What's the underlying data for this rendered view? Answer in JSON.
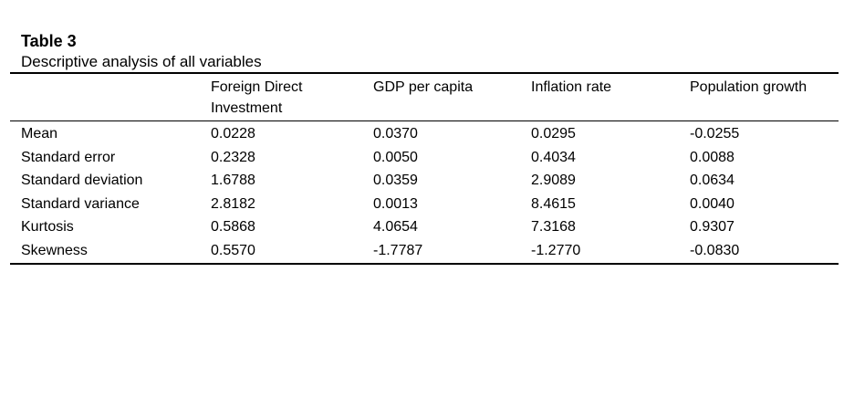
{
  "table": {
    "number": "Table 3",
    "title": "Descriptive analysis of all variables",
    "columns": [
      "",
      "Foreign Direct Investment",
      "GDP per capita",
      "Inflation rate",
      "Population growth"
    ],
    "rows": [
      {
        "label": "Mean",
        "values": [
          "0.0228",
          "0.0370",
          "0.0295",
          "-0.0255"
        ]
      },
      {
        "label": "Standard error",
        "values": [
          "0.2328",
          "0.0050",
          "0.4034",
          "0.0088"
        ]
      },
      {
        "label": "Standard deviation",
        "values": [
          "1.6788",
          "0.0359",
          "2.9089",
          "0.0634"
        ]
      },
      {
        "label": "Standard variance",
        "values": [
          "2.8182",
          "0.0013",
          "8.4615",
          "0.0040"
        ]
      },
      {
        "label": "Kurtosis",
        "values": [
          "0.5868",
          "4.0654",
          "7.3168",
          "0.9307"
        ]
      },
      {
        "label": "Skewness",
        "values": [
          "0.5570",
          "-1.7787",
          "-1.2770",
          "-0.0830"
        ]
      }
    ]
  }
}
